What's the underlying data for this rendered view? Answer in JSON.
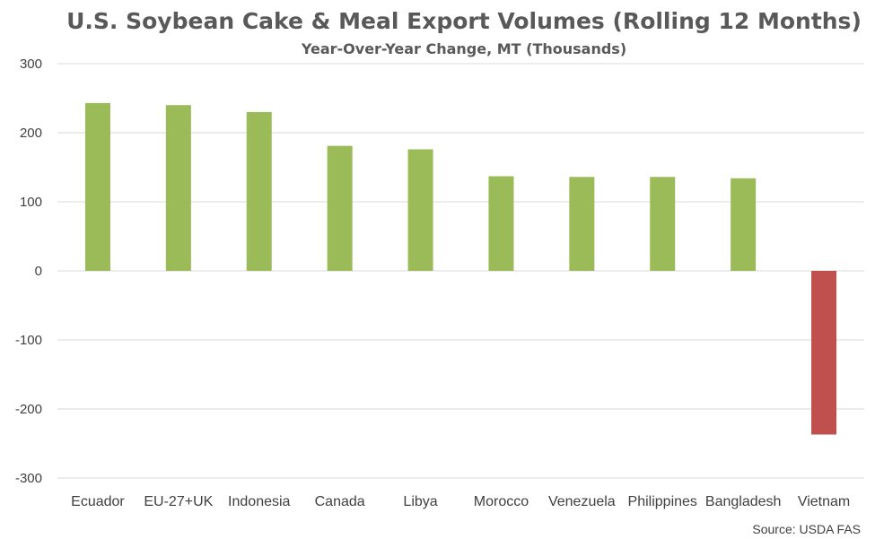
{
  "chart_data": {
    "type": "bar",
    "title": "U.S. Soybean Cake & Meal Export Volumes (Rolling 12 Months)",
    "subtitle": "Year-Over-Year Change, MT (Thousands)",
    "categories": [
      "Ecuador",
      "EU-27+UK",
      "Indonesia",
      "Canada",
      "Libya",
      "Morocco",
      "Venezuela",
      "Philippines",
      "Bangladesh",
      "Vietnam"
    ],
    "values": [
      243,
      240,
      230,
      181,
      176,
      137,
      136,
      136,
      134,
      -237
    ],
    "ylim": [
      -300,
      300
    ],
    "yticks": [
      "-300",
      "-200",
      "-100",
      "0",
      "100",
      "200",
      "300"
    ],
    "grid": true,
    "colors": {
      "positive": "#9BBB59",
      "negative": "#C0504D",
      "grid": "#D9D9D9",
      "title": "#595959"
    },
    "source": "Source: USDA FAS"
  }
}
